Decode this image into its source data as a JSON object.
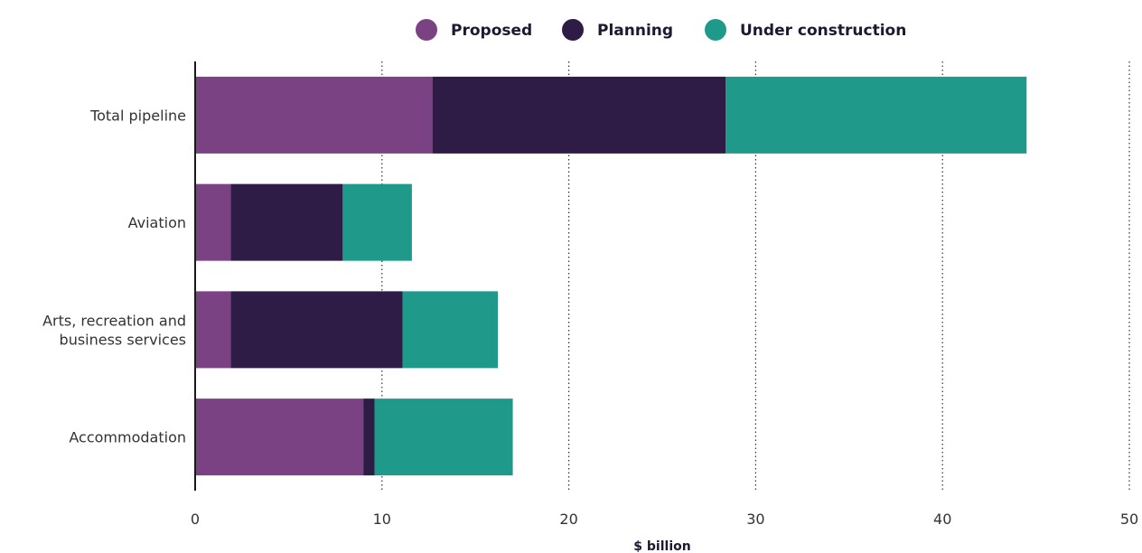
{
  "chart_data": {
    "type": "bar",
    "orientation": "horizontal",
    "stacked": true,
    "categories": [
      "Total pipeline",
      "Aviation",
      "Arts, recreation and business services",
      "Accommodation"
    ],
    "category_label_lines": [
      [
        "Total pipeline"
      ],
      [
        "Aviation"
      ],
      [
        "Arts, recreation and",
        "business services"
      ],
      [
        "Accommodation"
      ]
    ],
    "series": [
      {
        "name": "Proposed",
        "color": "#7b4283",
        "values": [
          12.7,
          1.9,
          1.9,
          9.0
        ]
      },
      {
        "name": "Planning",
        "color": "#2e1c46",
        "values": [
          15.7,
          6.0,
          9.2,
          0.6
        ]
      },
      {
        "name": "Under construction",
        "color": "#1f998a",
        "values": [
          16.1,
          3.7,
          5.1,
          7.4
        ]
      }
    ],
    "xlabel": "$ billion",
    "xlim": [
      0,
      50
    ],
    "xticks": [
      0,
      10,
      20,
      30,
      40,
      50
    ],
    "grid": "vertical dotted",
    "legend_position": "top"
  }
}
